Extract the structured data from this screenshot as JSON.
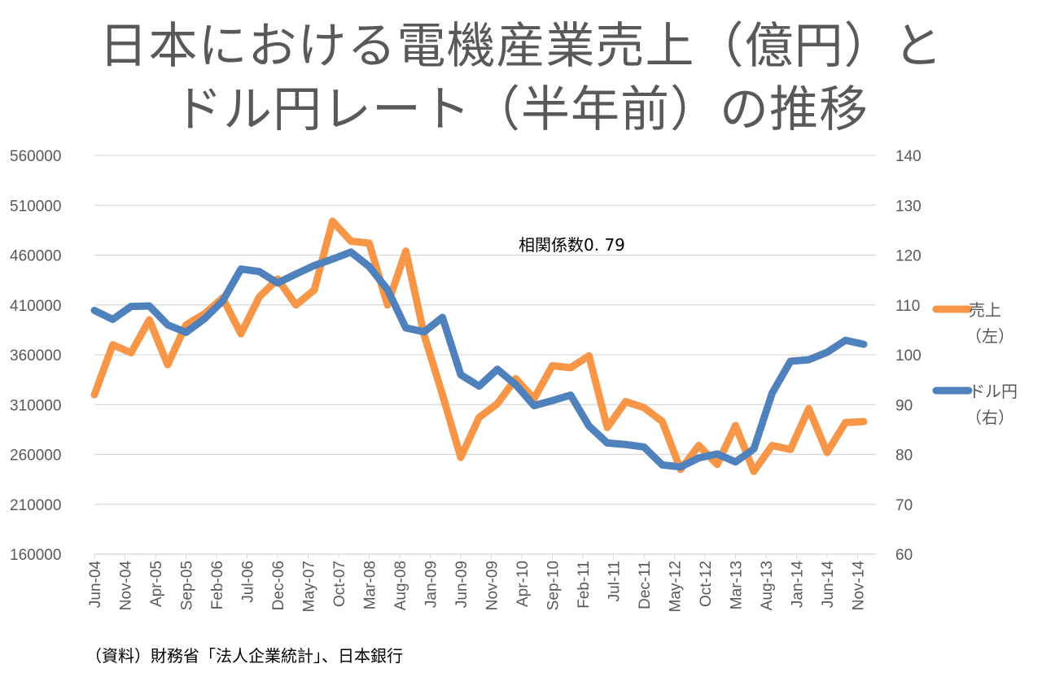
{
  "chart_data": {
    "type": "line",
    "title_line1": "日本における電機産業売上（億円）と",
    "title_line2": "ドル円レート（半年前）の推移",
    "annotation": "相関係数0. 79",
    "source": "（資料）財務省「法人企業統計」、日本銀行",
    "x_tick_labels": [
      "Jun-04",
      "Nov-04",
      "Apr-05",
      "Sep-05",
      "Feb-06",
      "Jul-06",
      "Dec-06",
      "May-07",
      "Oct-07",
      "Mar-08",
      "Aug-08",
      "Jan-09",
      "Jun-09",
      "Nov-09",
      "Apr-10",
      "Sep-10",
      "Feb-11",
      "Jul-11",
      "Dec-11",
      "May-12",
      "Oct-12",
      "Mar-13",
      "Aug-13",
      "Jan-14",
      "Jun-14",
      "Nov-14"
    ],
    "x_range_months": [
      0,
      128
    ],
    "point_interval_months": 3,
    "y_left": {
      "min": 160000,
      "max": 560000,
      "step": 50000,
      "ticks": [
        "560000",
        "510000",
        "460000",
        "410000",
        "360000",
        "310000",
        "260000",
        "210000",
        "160000"
      ]
    },
    "y_right": {
      "min": 60,
      "max": 140,
      "step": 10,
      "ticks": [
        "140",
        "130",
        "120",
        "110",
        "100",
        "90",
        "80",
        "70",
        "60"
      ]
    },
    "grid": true,
    "legend_position": "right",
    "series": [
      {
        "name": "売上",
        "legend_sub": "（左）",
        "axis": "left",
        "color": "#F79646",
        "values": [
          320000,
          370000,
          362000,
          395000,
          350000,
          390000,
          401000,
          417000,
          381000,
          418000,
          436000,
          410000,
          425000,
          494000,
          474000,
          472000,
          410000,
          464000,
          380000,
          320000,
          257000,
          297000,
          311000,
          336000,
          316000,
          349000,
          347000,
          359000,
          287000,
          313000,
          307000,
          293000,
          245000,
          269000,
          250000,
          289000,
          243000,
          269000,
          265000,
          306000,
          262000,
          292000,
          293000
        ]
      },
      {
        "name": "ドル円",
        "legend_sub": "（右）",
        "axis": "right",
        "color": "#4F81BD",
        "values": [
          108.9,
          107.1,
          109.7,
          109.8,
          106.0,
          104.5,
          107.2,
          110.8,
          117.2,
          116.7,
          114.4,
          116.2,
          117.9,
          119.2,
          120.6,
          117.7,
          113.1,
          105.4,
          104.6,
          107.5,
          96.0,
          93.7,
          97.1,
          94.0,
          89.8,
          90.8,
          91.9,
          85.7,
          82.3,
          82.0,
          81.5,
          77.9,
          77.5,
          79.3,
          80.1,
          78.5,
          81.1,
          92.3,
          98.7,
          99.0,
          100.5,
          102.9,
          102.1
        ]
      }
    ]
  }
}
